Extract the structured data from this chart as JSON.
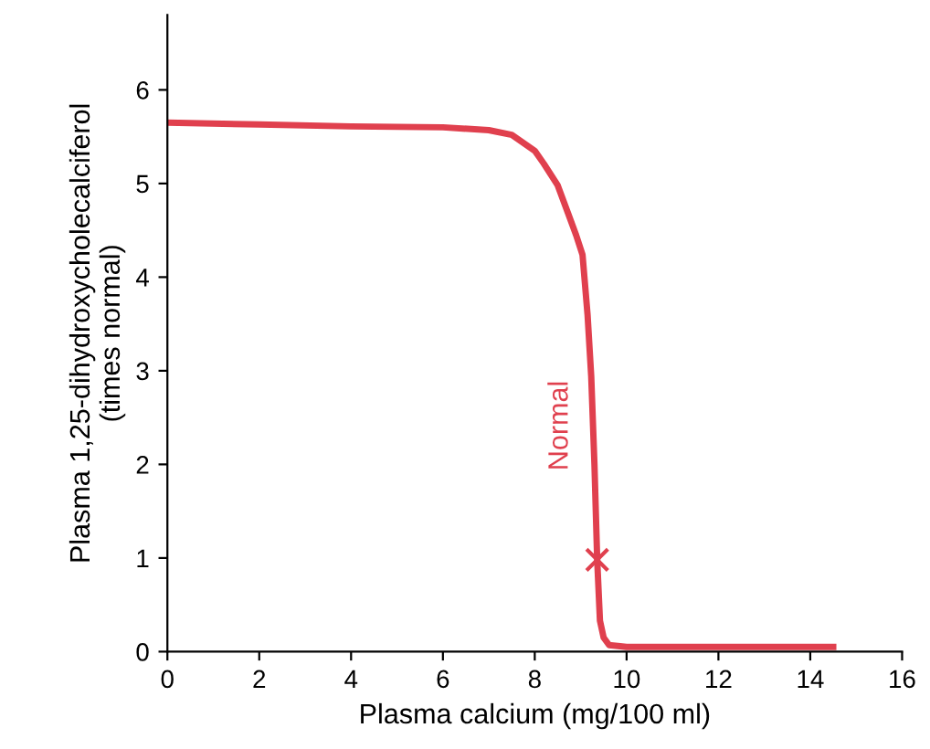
{
  "chart_data": {
    "type": "line",
    "xlabel": "Plasma calcium (mg/100 ml)",
    "ylabel": "Plasma 1,25-dihydroxycholecalciferol\n(times normal)",
    "xlim": [
      0,
      16
    ],
    "ylim": [
      0,
      6.8
    ],
    "xticks": [
      0,
      2,
      4,
      6,
      8,
      10,
      12,
      14,
      16
    ],
    "yticks": [
      0,
      1,
      2,
      3,
      4,
      5,
      6
    ],
    "grid": false,
    "legend": false,
    "series": [
      {
        "color": "#e0404e",
        "x": [
          0,
          2,
          4,
          6,
          7,
          7.5,
          8,
          8.2,
          8.5,
          8.72,
          8.9,
          9.04,
          9.15,
          9.23,
          9.3,
          9.36,
          9.42,
          9.5,
          9.62,
          10,
          12,
          14.5
        ],
        "values": [
          5.65,
          5.63,
          5.61,
          5.6,
          5.57,
          5.52,
          5.35,
          5.21,
          4.98,
          4.69,
          4.45,
          4.24,
          3.6,
          2.94,
          2.0,
          0.98,
          0.33,
          0.15,
          0.07,
          0.05,
          0.05,
          0.05
        ]
      },
      {
        "type": "scatter",
        "color": "#e0404e",
        "marker": "cross",
        "x": [
          9.36
        ],
        "values": [
          0.98
        ]
      }
    ],
    "annotations": [
      "Normal"
    ]
  }
}
